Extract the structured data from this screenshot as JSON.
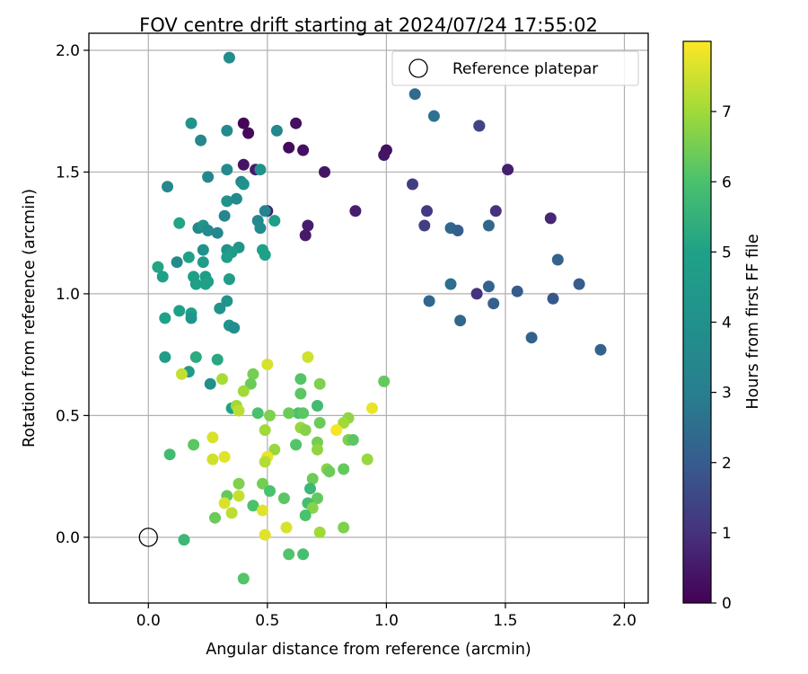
{
  "chart_data": {
    "type": "scatter",
    "title": "FOV centre drift starting at 2024/07/24 17:55:02",
    "xlabel": "Angular distance from reference (arcmin)",
    "ylabel": "Rotation from reference (arcmin)",
    "xlim": [
      -0.25,
      2.1
    ],
    "ylim": [
      -0.27,
      2.07
    ],
    "xticks": [
      0.0,
      0.5,
      1.0,
      1.5,
      2.0
    ],
    "yticks": [
      0.0,
      0.5,
      1.0,
      1.5,
      2.0
    ],
    "xtick_labels": [
      "0.0",
      "0.5",
      "1.0",
      "1.5",
      "2.0"
    ],
    "ytick_labels": [
      "0.0",
      "0.5",
      "1.0",
      "1.5",
      "2.0"
    ],
    "grid": true,
    "legend": {
      "entries": [
        "Reference platepar"
      ],
      "placement": "top-right"
    },
    "reference_point": {
      "label": "Reference platepar",
      "x": 0.0,
      "y": 0.0,
      "marker": "open-circle"
    },
    "colorbar": {
      "label": "Hours from first FF file",
      "colormap": "viridis",
      "range": [
        0,
        8
      ],
      "ticks": [
        0,
        1,
        2,
        3,
        4,
        5,
        6,
        7
      ],
      "tick_labels": [
        "0",
        "1",
        "2",
        "3",
        "4",
        "5",
        "6",
        "7"
      ]
    },
    "points": [
      [
        0.4,
        1.7,
        0.1
      ],
      [
        0.42,
        1.66,
        0.2
      ],
      [
        0.62,
        1.7,
        0.3
      ],
      [
        0.59,
        1.6,
        0.2
      ],
      [
        0.65,
        1.59,
        0.3
      ],
      [
        0.4,
        1.53,
        0.4
      ],
      [
        0.45,
        1.51,
        0.5
      ],
      [
        0.74,
        1.5,
        0.4
      ],
      [
        0.5,
        1.34,
        0.6
      ],
      [
        0.67,
        1.28,
        0.6
      ],
      [
        0.66,
        1.24,
        0.5
      ],
      [
        0.87,
        1.34,
        0.6
      ],
      [
        1.0,
        1.59,
        0.3
      ],
      [
        0.99,
        1.57,
        0.4
      ],
      [
        1.51,
        1.51,
        0.6
      ],
      [
        1.39,
        1.69,
        1.1
      ],
      [
        1.69,
        1.31,
        0.8
      ],
      [
        1.46,
        1.34,
        1.0
      ],
      [
        1.17,
        1.34,
        1.2
      ],
      [
        1.11,
        1.45,
        1.3
      ],
      [
        1.16,
        1.28,
        1.3
      ],
      [
        1.38,
        1.0,
        1.0
      ],
      [
        1.12,
        1.82,
        2.4
      ],
      [
        1.2,
        1.73,
        2.6
      ],
      [
        1.39,
        1.69,
        1.4
      ],
      [
        1.27,
        1.27,
        2.3
      ],
      [
        1.3,
        1.26,
        2.1
      ],
      [
        1.43,
        1.28,
        2.3
      ],
      [
        1.72,
        1.14,
        2.2
      ],
      [
        1.81,
        1.04,
        2.0
      ],
      [
        1.27,
        1.04,
        2.5
      ],
      [
        1.43,
        1.03,
        2.2
      ],
      [
        1.55,
        1.01,
        2.0
      ],
      [
        1.7,
        0.98,
        1.9
      ],
      [
        1.18,
        0.97,
        2.3
      ],
      [
        1.45,
        0.96,
        2.1
      ],
      [
        1.31,
        0.89,
        2.3
      ],
      [
        1.61,
        0.82,
        2.2
      ],
      [
        1.9,
        0.77,
        2.2
      ],
      [
        0.34,
        1.97,
        3.8
      ],
      [
        0.18,
        1.7,
        4.1
      ],
      [
        0.22,
        1.63,
        3.5
      ],
      [
        0.33,
        1.67,
        3.6
      ],
      [
        0.54,
        1.67,
        3.4
      ],
      [
        0.33,
        1.51,
        3.6
      ],
      [
        0.47,
        1.51,
        4.0
      ],
      [
        0.25,
        1.48,
        3.4
      ],
      [
        0.39,
        1.46,
        3.4
      ],
      [
        0.4,
        1.45,
        4.0
      ],
      [
        0.08,
        1.44,
        3.5
      ],
      [
        0.33,
        1.38,
        4.1
      ],
      [
        0.37,
        1.39,
        3.6
      ],
      [
        0.32,
        1.32,
        3.4
      ],
      [
        0.49,
        1.34,
        3.3
      ],
      [
        0.46,
        1.3,
        3.5
      ],
      [
        0.53,
        1.3,
        4.9
      ],
      [
        0.21,
        1.27,
        3.5
      ],
      [
        0.23,
        1.28,
        4.1
      ],
      [
        0.25,
        1.26,
        3.6
      ],
      [
        0.29,
        1.25,
        3.5
      ],
      [
        0.47,
        1.27,
        3.6
      ],
      [
        0.13,
        1.29,
        5.1
      ],
      [
        0.33,
        1.18,
        4.0
      ],
      [
        0.38,
        1.19,
        4.3
      ],
      [
        0.23,
        1.18,
        4.0
      ],
      [
        0.35,
        1.17,
        4.6
      ],
      [
        0.48,
        1.18,
        5.0
      ],
      [
        0.49,
        1.16,
        5.0
      ],
      [
        0.33,
        1.15,
        4.8
      ],
      [
        0.17,
        1.15,
        5.0
      ],
      [
        0.23,
        1.13,
        4.7
      ],
      [
        0.12,
        1.13,
        3.6
      ],
      [
        0.04,
        1.11,
        5.1
      ],
      [
        0.06,
        1.07,
        5.0
      ],
      [
        0.19,
        1.07,
        4.9
      ],
      [
        0.24,
        1.07,
        4.7
      ],
      [
        0.25,
        1.05,
        4.9
      ],
      [
        0.2,
        1.04,
        4.8
      ],
      [
        0.24,
        1.04,
        5.0
      ],
      [
        0.34,
        1.06,
        4.7
      ],
      [
        0.33,
        0.97,
        4.2
      ],
      [
        0.3,
        0.94,
        4.1
      ],
      [
        0.13,
        0.93,
        5.0
      ],
      [
        0.18,
        0.92,
        4.9
      ],
      [
        0.18,
        0.9,
        4.3
      ],
      [
        0.07,
        0.9,
        5.0
      ],
      [
        0.34,
        0.87,
        4.2
      ],
      [
        0.36,
        0.86,
        3.7
      ],
      [
        0.07,
        0.74,
        4.7
      ],
      [
        0.2,
        0.74,
        5.3
      ],
      [
        0.29,
        0.73,
        5.2
      ],
      [
        0.17,
        0.68,
        4.6
      ],
      [
        0.26,
        0.63,
        3.9
      ],
      [
        0.35,
        0.53,
        5.0
      ],
      [
        0.67,
        0.74,
        7.5
      ],
      [
        0.5,
        0.71,
        7.6
      ],
      [
        0.14,
        0.67,
        7.4
      ],
      [
        0.44,
        0.67,
        6.5
      ],
      [
        0.99,
        0.64,
        6.3
      ],
      [
        0.31,
        0.65,
        7.1
      ],
      [
        0.64,
        0.65,
        6.1
      ],
      [
        0.72,
        0.63,
        6.6
      ],
      [
        0.43,
        0.63,
        6.4
      ],
      [
        0.4,
        0.6,
        7.0
      ],
      [
        0.64,
        0.59,
        6.2
      ],
      [
        0.37,
        0.54,
        7.0
      ],
      [
        0.38,
        0.52,
        7.3
      ],
      [
        0.63,
        0.51,
        6.0
      ],
      [
        0.59,
        0.51,
        6.4
      ],
      [
        0.46,
        0.51,
        6.0
      ],
      [
        0.65,
        0.51,
        6.2
      ],
      [
        0.51,
        0.5,
        6.6
      ],
      [
        0.71,
        0.54,
        5.8
      ],
      [
        0.94,
        0.53,
        7.8
      ],
      [
        0.84,
        0.49,
        6.8
      ],
      [
        0.72,
        0.47,
        6.4
      ],
      [
        0.82,
        0.47,
        7.0
      ],
      [
        0.64,
        0.45,
        6.9
      ],
      [
        0.66,
        0.44,
        6.7
      ],
      [
        0.49,
        0.44,
        7.0
      ],
      [
        0.79,
        0.44,
        7.9
      ],
      [
        0.27,
        0.41,
        7.6
      ],
      [
        0.84,
        0.4,
        6.6
      ],
      [
        0.86,
        0.4,
        6.2
      ],
      [
        0.71,
        0.39,
        6.5
      ],
      [
        0.62,
        0.38,
        6.1
      ],
      [
        0.71,
        0.36,
        6.8
      ],
      [
        0.53,
        0.36,
        6.9
      ],
      [
        0.19,
        0.38,
        6.2
      ],
      [
        0.09,
        0.34,
        5.8
      ],
      [
        0.32,
        0.33,
        7.7
      ],
      [
        0.27,
        0.32,
        7.5
      ],
      [
        0.5,
        0.33,
        7.8
      ],
      [
        0.49,
        0.31,
        7.2
      ],
      [
        0.92,
        0.32,
        6.9
      ],
      [
        0.75,
        0.28,
        6.7
      ],
      [
        0.76,
        0.27,
        6.4
      ],
      [
        0.82,
        0.28,
        6.3
      ],
      [
        0.69,
        0.24,
        6.4
      ],
      [
        0.38,
        0.22,
        6.6
      ],
      [
        0.48,
        0.22,
        6.5
      ],
      [
        0.68,
        0.2,
        5.7
      ],
      [
        0.51,
        0.19,
        6.0
      ],
      [
        0.33,
        0.17,
        6.3
      ],
      [
        0.38,
        0.17,
        7.4
      ],
      [
        0.57,
        0.16,
        6.2
      ],
      [
        0.71,
        0.16,
        6.3
      ],
      [
        0.32,
        0.14,
        7.6
      ],
      [
        0.44,
        0.13,
        6.0
      ],
      [
        0.67,
        0.14,
        5.9
      ],
      [
        0.48,
        0.11,
        7.7
      ],
      [
        0.69,
        0.12,
        6.7
      ],
      [
        0.35,
        0.1,
        7.3
      ],
      [
        0.66,
        0.09,
        6.0
      ],
      [
        0.28,
        0.08,
        6.4
      ],
      [
        0.58,
        0.04,
        7.6
      ],
      [
        0.82,
        0.04,
        6.6
      ],
      [
        0.49,
        0.01,
        7.7
      ],
      [
        0.72,
        0.02,
        7.0
      ],
      [
        0.15,
        -0.01,
        5.7
      ],
      [
        0.59,
        -0.07,
        6.1
      ],
      [
        0.65,
        -0.07,
        5.9
      ],
      [
        0.4,
        -0.17,
        6.1
      ]
    ]
  }
}
